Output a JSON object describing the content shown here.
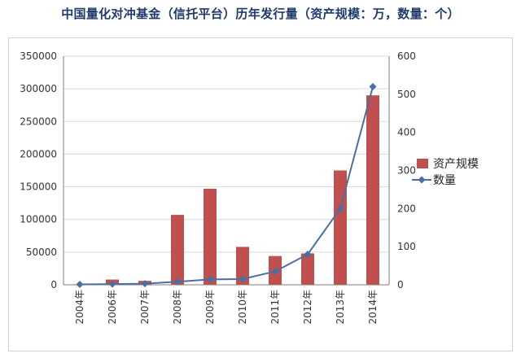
{
  "title": "中国量化对冲基金（信托平台）历年发行量（资产规模：万，数量：个）",
  "colors": {
    "bar": "#c0504d",
    "line": "#4a6fa5"
  },
  "chart_data": {
    "type": "bar",
    "title": "中国量化对冲基金（信托平台）历年发行量（资产规模：万，数量：个）",
    "categories": [
      "2004年",
      "2006年",
      "2007年",
      "2008年",
      "2009年",
      "2010年",
      "2011年",
      "2012年",
      "2013年",
      "2014年"
    ],
    "series": [
      {
        "name": "资产规模",
        "kind": "bar",
        "axis": "left",
        "values": [
          500,
          8000,
          6000,
          107000,
          147000,
          58000,
          44000,
          48000,
          175000,
          290000
        ]
      },
      {
        "name": "数量",
        "kind": "line",
        "axis": "right",
        "values": [
          1,
          2,
          3,
          8,
          14,
          15,
          35,
          80,
          200,
          520
        ]
      }
    ],
    "y_left": {
      "min": 0,
      "max": 350000,
      "ticks": [
        "0",
        "50000",
        "100000",
        "150000",
        "200000",
        "250000",
        "300000",
        "350000"
      ]
    },
    "y_right": {
      "min": 0,
      "max": 600,
      "ticks": [
        "0",
        "100",
        "200",
        "300",
        "400",
        "500",
        "600"
      ]
    },
    "grid": true,
    "legend": "right"
  }
}
